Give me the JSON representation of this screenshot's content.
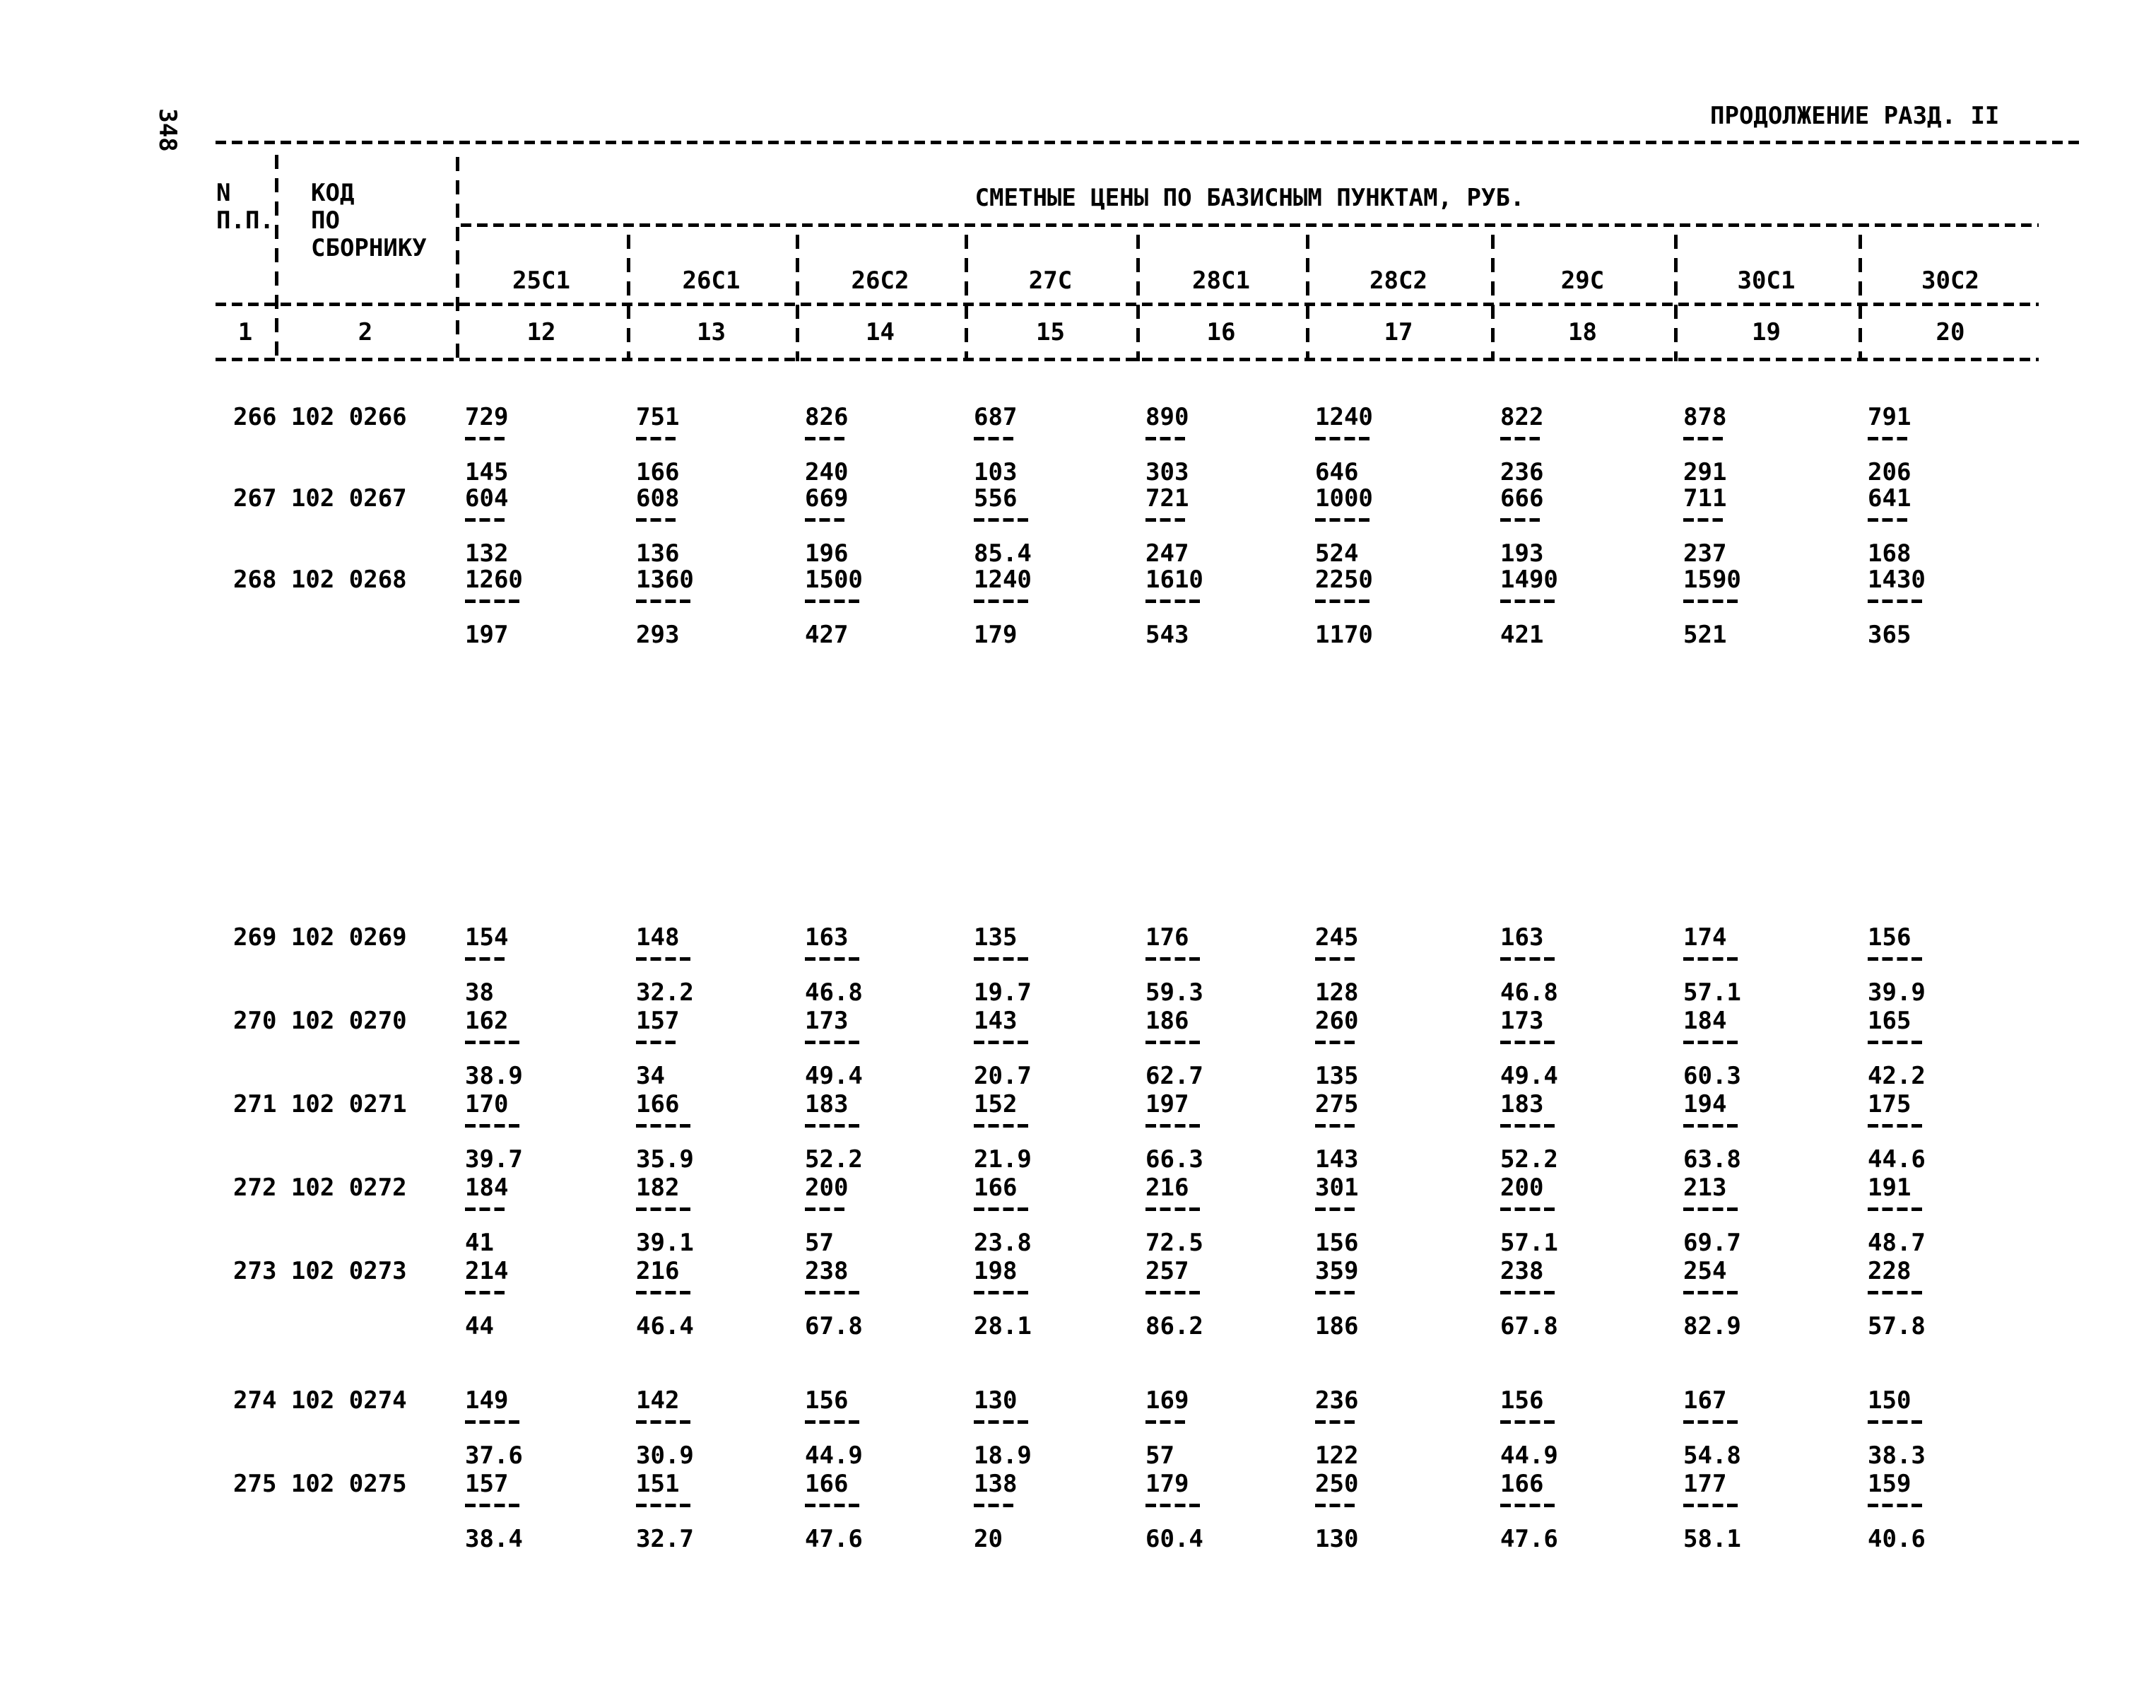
{
  "page": {
    "number": "348",
    "continuation": "ПРОДОЛЖЕНИЕ РАЗД. II"
  },
  "table": {
    "col1_header": [
      "N",
      "П.П."
    ],
    "col2_header": [
      "КОД",
      "ПО",
      "СБОРНИКУ"
    ],
    "span_header": "СМЕТНЫЕ ЦЕНЫ ПО БАЗИСНЫМ ПУНКТАМ, РУБ.",
    "col1_index": "1",
    "col2_index": "2",
    "columns": [
      {
        "label": "25С1",
        "index": "12"
      },
      {
        "label": "26С1",
        "index": "13"
      },
      {
        "label": "26С2",
        "index": "14"
      },
      {
        "label": "27С",
        "index": "15"
      },
      {
        "label": "28С1",
        "index": "16"
      },
      {
        "label": "28С2",
        "index": "17"
      },
      {
        "label": "29С",
        "index": "18"
      },
      {
        "label": "30С1",
        "index": "19"
      },
      {
        "label": "30С2",
        "index": "20"
      }
    ],
    "rows": [
      {
        "n": "266",
        "code": "102 0266",
        "values": [
          [
            "729",
            "145"
          ],
          [
            "751",
            "166"
          ],
          [
            "826",
            "240"
          ],
          [
            "687",
            "103"
          ],
          [
            "890",
            "303"
          ],
          [
            "1240",
            "646"
          ],
          [
            "822",
            "236"
          ],
          [
            "878",
            "291"
          ],
          [
            "791",
            "206"
          ]
        ]
      },
      {
        "n": "267",
        "code": "102 0267",
        "values": [
          [
            "604",
            "132"
          ],
          [
            "608",
            "136"
          ],
          [
            "669",
            "196"
          ],
          [
            "556",
            "85.4"
          ],
          [
            "721",
            "247"
          ],
          [
            "1000",
            "524"
          ],
          [
            "666",
            "193"
          ],
          [
            "711",
            "237"
          ],
          [
            "641",
            "168"
          ]
        ]
      },
      {
        "n": "268",
        "code": "102 0268",
        "values": [
          [
            "1260",
            "197"
          ],
          [
            "1360",
            "293"
          ],
          [
            "1500",
            "427"
          ],
          [
            "1240",
            "179"
          ],
          [
            "1610",
            "543"
          ],
          [
            "2250",
            "1170"
          ],
          [
            "1490",
            "421"
          ],
          [
            "1590",
            "521"
          ],
          [
            "1430",
            "365"
          ]
        ]
      },
      {
        "n": "269",
        "code": "102 0269",
        "values": [
          [
            "154",
            "38"
          ],
          [
            "148",
            "32.2"
          ],
          [
            "163",
            "46.8"
          ],
          [
            "135",
            "19.7"
          ],
          [
            "176",
            "59.3"
          ],
          [
            "245",
            "128"
          ],
          [
            "163",
            "46.8"
          ],
          [
            "174",
            "57.1"
          ],
          [
            "156",
            "39.9"
          ]
        ]
      },
      {
        "n": "270",
        "code": "102 0270",
        "values": [
          [
            "162",
            "38.9"
          ],
          [
            "157",
            "34"
          ],
          [
            "173",
            "49.4"
          ],
          [
            "143",
            "20.7"
          ],
          [
            "186",
            "62.7"
          ],
          [
            "260",
            "135"
          ],
          [
            "173",
            "49.4"
          ],
          [
            "184",
            "60.3"
          ],
          [
            "165",
            "42.2"
          ]
        ]
      },
      {
        "n": "271",
        "code": "102 0271",
        "values": [
          [
            "170",
            "39.7"
          ],
          [
            "166",
            "35.9"
          ],
          [
            "183",
            "52.2"
          ],
          [
            "152",
            "21.9"
          ],
          [
            "197",
            "66.3"
          ],
          [
            "275",
            "143"
          ],
          [
            "183",
            "52.2"
          ],
          [
            "194",
            "63.8"
          ],
          [
            "175",
            "44.6"
          ]
        ]
      },
      {
        "n": "272",
        "code": "102 0272",
        "values": [
          [
            "184",
            "41"
          ],
          [
            "182",
            "39.1"
          ],
          [
            "200",
            "57"
          ],
          [
            "166",
            "23.8"
          ],
          [
            "216",
            "72.5"
          ],
          [
            "301",
            "156"
          ],
          [
            "200",
            "57.1"
          ],
          [
            "213",
            "69.7"
          ],
          [
            "191",
            "48.7"
          ]
        ]
      },
      {
        "n": "273",
        "code": "102 0273",
        "values": [
          [
            "214",
            "44"
          ],
          [
            "216",
            "46.4"
          ],
          [
            "238",
            "67.8"
          ],
          [
            "198",
            "28.1"
          ],
          [
            "257",
            "86.2"
          ],
          [
            "359",
            "186"
          ],
          [
            "238",
            "67.8"
          ],
          [
            "254",
            "82.9"
          ],
          [
            "228",
            "57.8"
          ]
        ]
      },
      {
        "n": "274",
        "code": "102 0274",
        "values": [
          [
            "149",
            "37.6"
          ],
          [
            "142",
            "30.9"
          ],
          [
            "156",
            "44.9"
          ],
          [
            "130",
            "18.9"
          ],
          [
            "169",
            "57"
          ],
          [
            "236",
            "122"
          ],
          [
            "156",
            "44.9"
          ],
          [
            "167",
            "54.8"
          ],
          [
            "150",
            "38.3"
          ]
        ]
      },
      {
        "n": "275",
        "code": "102 0275",
        "values": [
          [
            "157",
            "38.4"
          ],
          [
            "151",
            "32.7"
          ],
          [
            "166",
            "47.6"
          ],
          [
            "138",
            "20"
          ],
          [
            "179",
            "60.4"
          ],
          [
            "250",
            "130"
          ],
          [
            "166",
            "47.6"
          ],
          [
            "177",
            "58.1"
          ],
          [
            "159",
            "40.6"
          ]
        ]
      }
    ]
  }
}
